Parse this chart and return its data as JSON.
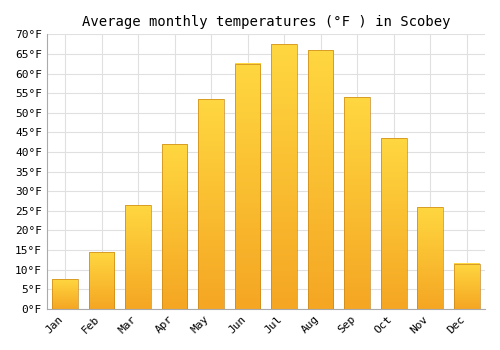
{
  "title": "Average monthly temperatures (°F ) in Scobey",
  "months": [
    "Jan",
    "Feb",
    "Mar",
    "Apr",
    "May",
    "Jun",
    "Jul",
    "Aug",
    "Sep",
    "Oct",
    "Nov",
    "Dec"
  ],
  "values": [
    7.5,
    14.5,
    26.5,
    42.0,
    53.5,
    62.5,
    67.5,
    66.0,
    54.0,
    43.5,
    26.0,
    11.5
  ],
  "bar_color_top": "#FFD740",
  "bar_color_bottom": "#F5A623",
  "bar_edge_color": "#C8861A",
  "ylim": [
    0,
    70
  ],
  "yticks": [
    0,
    5,
    10,
    15,
    20,
    25,
    30,
    35,
    40,
    45,
    50,
    55,
    60,
    65,
    70
  ],
  "background_color": "#ffffff",
  "grid_color": "#e0e0e0",
  "title_fontsize": 10,
  "tick_fontsize": 8,
  "font_family": "monospace",
  "bar_width": 0.7
}
